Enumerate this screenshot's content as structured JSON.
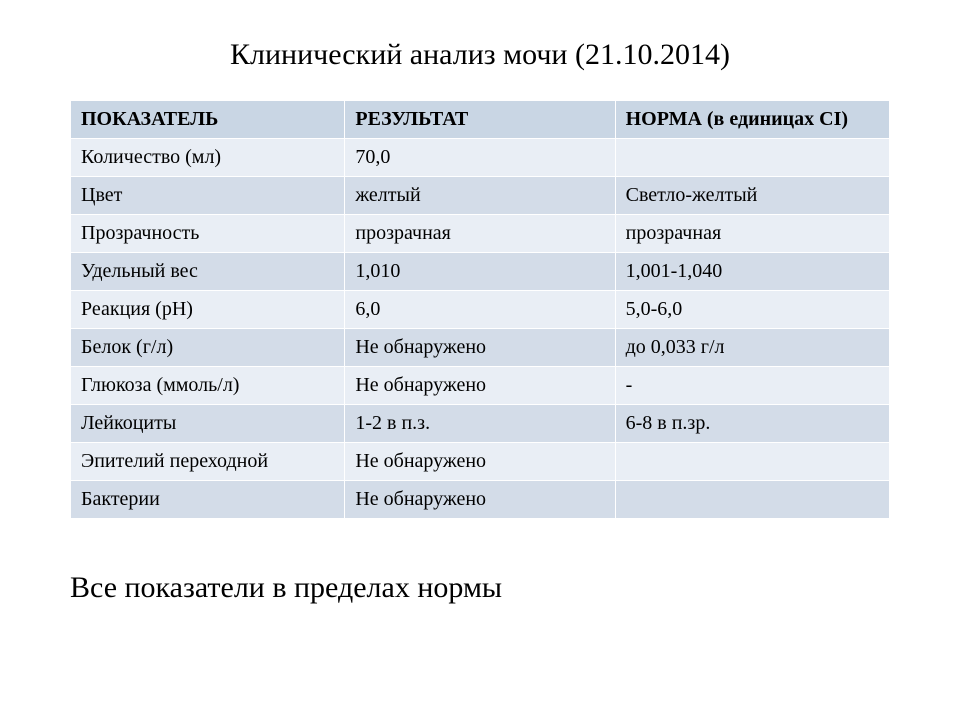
{
  "title": "Клинический анализ мочи (21.10.2014)",
  "table": {
    "type": "table",
    "header_bg": "#c9d6e4",
    "row_bg_odd": "#e9eef5",
    "row_bg_even": "#d3dce8",
    "border_color": "#ffffff",
    "font_family": "Times New Roman",
    "header_fontsize": 20,
    "cell_fontsize": 20,
    "columns": [
      {
        "label": "ПОКАЗАТЕЛЬ",
        "width_pct": 33.5,
        "align": "left"
      },
      {
        "label": "РЕЗУЛЬТАТ",
        "width_pct": 33.0,
        "align": "left"
      },
      {
        "label": "НОРМА (в единицах СI)",
        "width_pct": 33.5,
        "align": "left"
      }
    ],
    "rows": [
      {
        "param": "Количество (мл)",
        "result": "70,0",
        "norm": ""
      },
      {
        "param": "Цвет",
        "result": "желтый",
        "norm": "Светло-желтый"
      },
      {
        "param": "Прозрачность",
        "result": "прозрачная",
        "norm": "прозрачная"
      },
      {
        "param": "Удельный вес",
        "result": "1,010",
        "norm": "1,001-1,040"
      },
      {
        "param": "Реакция (рН)",
        "result": "6,0",
        "norm": "5,0-6,0"
      },
      {
        "param": "Белок (г/л)",
        "result": "Не обнаружено",
        "norm": "до 0,033 г/л"
      },
      {
        "param": "Глюкоза (ммоль/л)",
        "result": "Не обнаружено",
        "norm": "-"
      },
      {
        "param": "Лейкоциты",
        "result": "1-2 в п.з.",
        "norm": "6-8 в п.зр."
      },
      {
        "param": "Эпителий переходной",
        "result": "Не обнаружено",
        "norm": ""
      },
      {
        "param": "Бактерии",
        "result": "Не обнаружено",
        "norm": ""
      }
    ]
  },
  "footer": "Все показатели в пределах нормы",
  "colors": {
    "background": "#ffffff",
    "text": "#000000"
  },
  "title_fontsize": 30,
  "footer_fontsize": 30
}
